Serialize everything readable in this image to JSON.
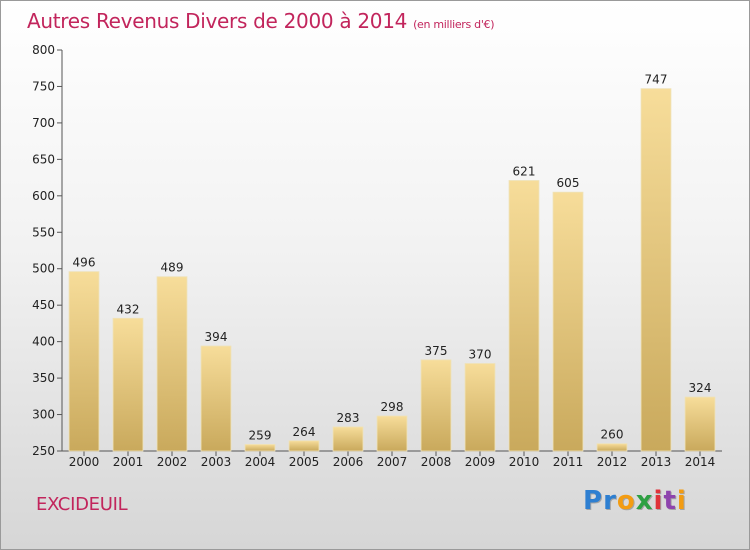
{
  "header": {
    "title": "Autres Revenus Divers de 2000 à 2014",
    "subtitle": "(en milliers d'€)"
  },
  "footer": {
    "town": "EXCIDEUIL",
    "logo": [
      "P",
      "r",
      "o",
      "x",
      "i",
      "t",
      "i"
    ],
    "logo_colors": [
      "#2e7fd1",
      "#2e7fd1",
      "#f39c12",
      "#2ea043",
      "#e0333a",
      "#8e44ad",
      "#f39c12"
    ]
  },
  "colors": {
    "bar_top": "#f7dd9a",
    "bar_bottom": "#c9a95c",
    "axis": "#555555",
    "gridline": "#dddddd",
    "title": "#c2255c"
  },
  "chart_data": {
    "type": "bar",
    "title": "Autres Revenus Divers de 2000 à 2014",
    "subtitle": "(en milliers d'€)",
    "xlabel": "",
    "ylabel": "",
    "categories": [
      "2000",
      "2001",
      "2002",
      "2003",
      "2004",
      "2005",
      "2006",
      "2007",
      "2008",
      "2009",
      "2010",
      "2011",
      "2012",
      "2013",
      "2014"
    ],
    "values": [
      496,
      432,
      489,
      394,
      259,
      264,
      283,
      298,
      375,
      370,
      621,
      605,
      260,
      747,
      324
    ],
    "ylim": [
      250,
      800
    ],
    "yticks": [
      250,
      300,
      350,
      400,
      450,
      500,
      550,
      600,
      650,
      700,
      750,
      800
    ],
    "grid": false,
    "legend": "none"
  }
}
